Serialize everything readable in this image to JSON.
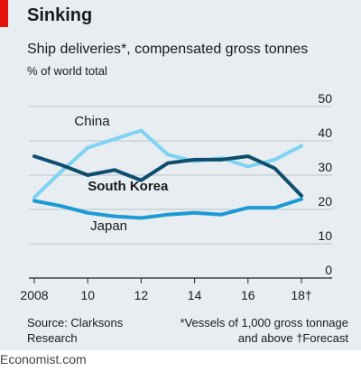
{
  "header": {
    "title": "Sinking",
    "subtitle": "Ship deliveries*, compensated gross tonnes",
    "units": "% of world total"
  },
  "footer": {
    "source_line1": "Source: Clarksons",
    "source_line2": "Research",
    "note_line1": "*Vessels of 1,000 gross tonnage",
    "note_line2": "and above  †Forecast",
    "brand": "Economist.com"
  },
  "colors": {
    "background": "#e7edf0",
    "accent_red": "#e3120b",
    "china": "#7fd3f2",
    "south_korea": "#0e4d6e",
    "japan": "#1b9ad6",
    "grid": "#b9c5cc"
  },
  "chart_data": {
    "type": "line",
    "x": [
      2008,
      2009,
      2010,
      2011,
      2012,
      2013,
      2014,
      2015,
      2016,
      2017,
      2018
    ],
    "x_tick_labels": [
      "2008",
      "10",
      "12",
      "14",
      "16",
      "18†"
    ],
    "x_tick_values": [
      2008,
      2010,
      2012,
      2014,
      2016,
      2018
    ],
    "ylim": [
      0,
      50
    ],
    "y_ticks": [
      0,
      10,
      20,
      30,
      40,
      50
    ],
    "y_axis_position": "right",
    "grid": true,
    "series": [
      {
        "name": "China",
        "color": "#7fd3f2",
        "bold_label": false,
        "values": [
          23.5,
          31,
          38,
          40.5,
          43,
          36,
          34,
          35,
          32.5,
          34.5,
          38.5
        ]
      },
      {
        "name": "South Korea",
        "color": "#0e4d6e",
        "bold_label": true,
        "values": [
          35.5,
          33,
          30,
          31.5,
          28.5,
          33.5,
          34.5,
          34.5,
          35.5,
          32,
          24
        ]
      },
      {
        "name": "Japan",
        "color": "#1b9ad6",
        "bold_label": false,
        "values": [
          22.5,
          21,
          19,
          18,
          17.5,
          18.5,
          19,
          18.5,
          20.5,
          20.5,
          23
        ]
      }
    ],
    "series_labels": "inline"
  }
}
